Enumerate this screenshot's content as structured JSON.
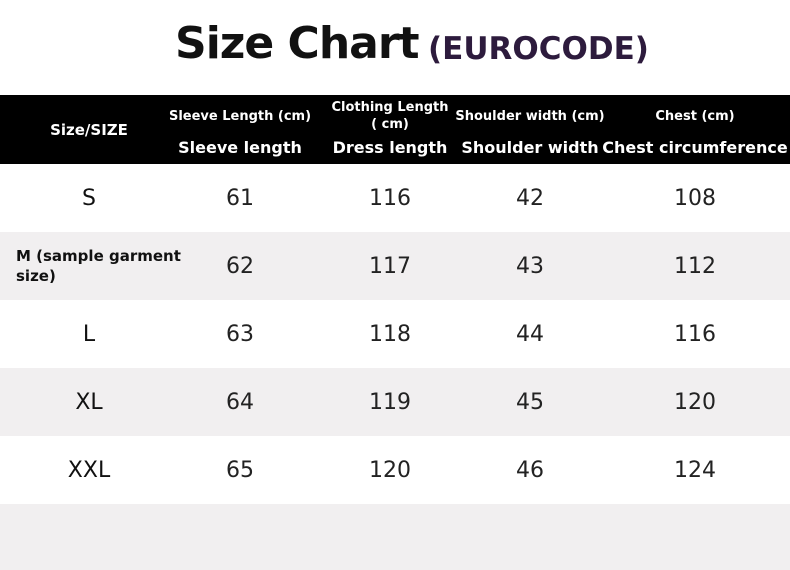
{
  "title": "Size Chart",
  "subtitle": "(EUROCODE)",
  "table": {
    "header": [
      {
        "top": "Size/SIZE"
      },
      {
        "top": "Sleeve Length (cm)",
        "bottom": "Sleeve length"
      },
      {
        "top": "Clothing Length ( cm)",
        "bottom": "Dress length"
      },
      {
        "top": "Shoulder width (cm)",
        "bottom": "Shoulder width"
      },
      {
        "top": "Chest (cm)",
        "bottom": "Chest circumference"
      }
    ],
    "rows": [
      [
        "S",
        61,
        116,
        42,
        108
      ],
      [
        "M (sample garment size)",
        62,
        117,
        43,
        112
      ],
      [
        "L",
        63,
        118,
        44,
        116
      ],
      [
        "XL",
        64,
        119,
        45,
        120
      ],
      [
        "XXL",
        65,
        120,
        46,
        124
      ]
    ]
  }
}
